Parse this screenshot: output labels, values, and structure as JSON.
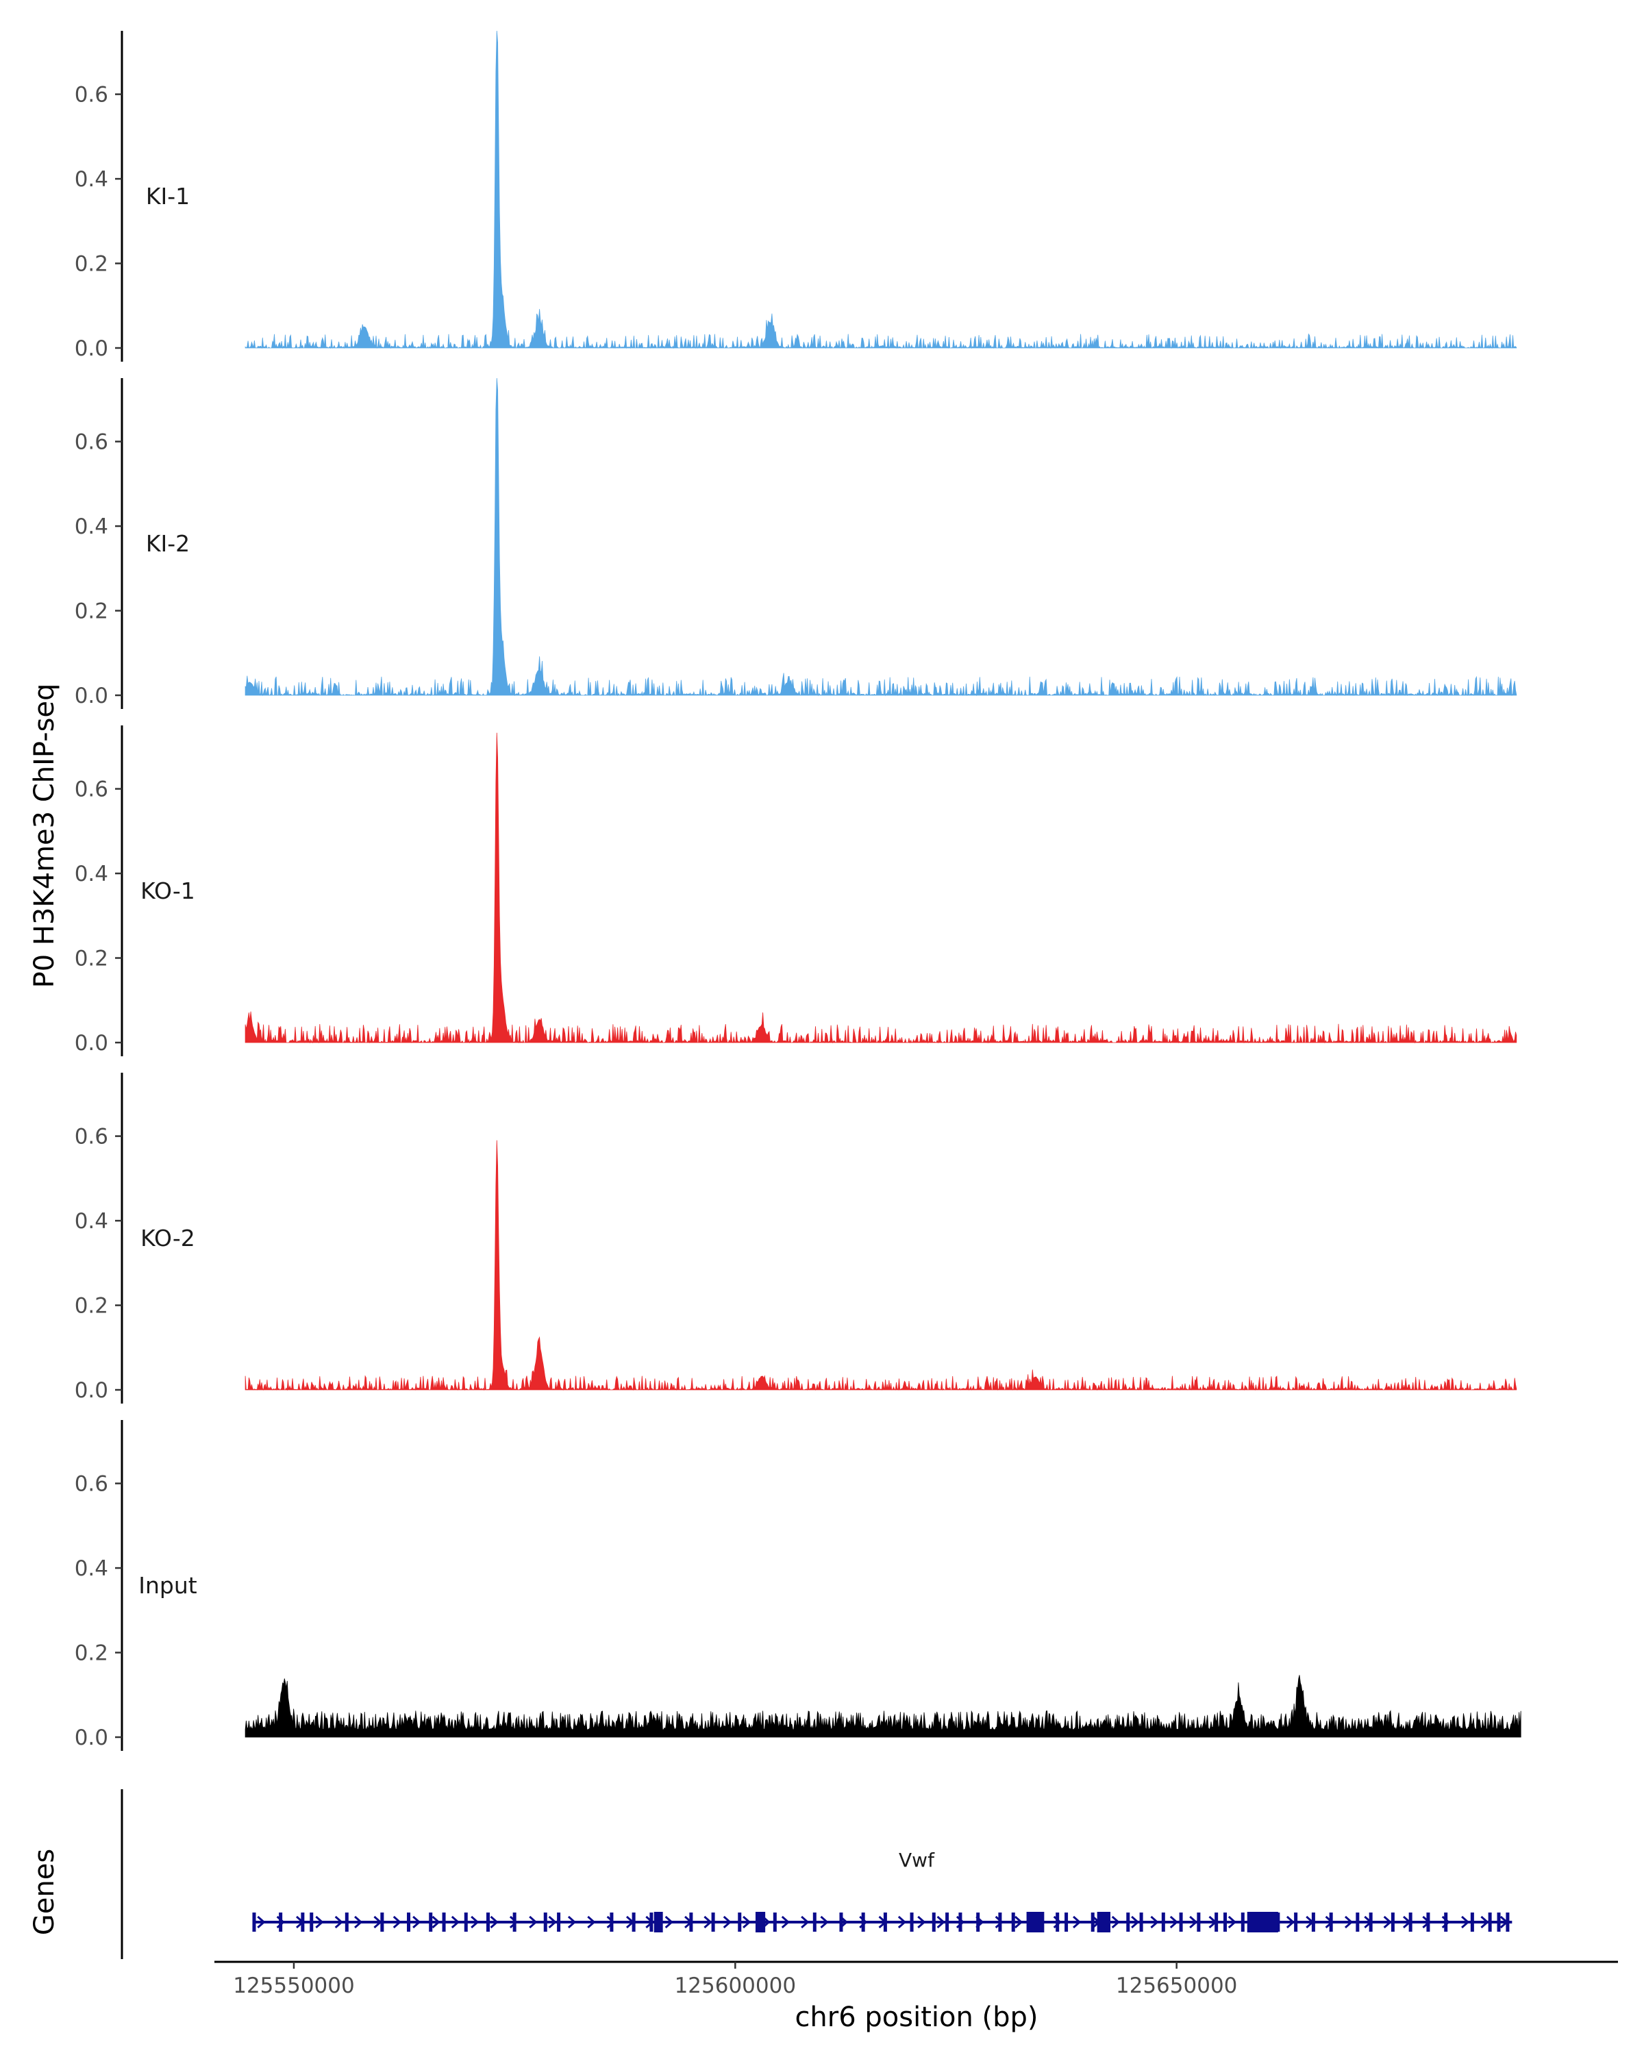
{
  "chart_data": {
    "type": "area",
    "ylabel": "P0 H3K4me3 ChIP-seq",
    "xlabel": "chr6 position (bp)",
    "xlim": [
      125541000,
      125700000
    ],
    "x_ticks": [
      {
        "value": 125550000,
        "label": "125550000"
      },
      {
        "value": 125600000,
        "label": "125600000"
      },
      {
        "value": 125650000,
        "label": "125650000"
      }
    ],
    "ylim": [
      0,
      0.75
    ],
    "y_ticks": [
      {
        "value": 0.0,
        "label": "0.0"
      },
      {
        "value": 0.2,
        "label": "0.2"
      },
      {
        "value": 0.4,
        "label": "0.4"
      },
      {
        "value": 0.6,
        "label": "0.6"
      }
    ],
    "tracks": [
      {
        "name": "KI-1",
        "color": "#56a6e4",
        "peaks": [
          [
            125573000,
            0.7
          ],
          [
            125573400,
            0.14
          ],
          [
            125577800,
            0.06
          ],
          [
            125558000,
            0.05
          ],
          [
            125604000,
            0.06
          ]
        ],
        "background": 0.015,
        "range": [
          125544500,
          125688500
        ],
        "seed": 11
      },
      {
        "name": "KI-2",
        "color": "#56a6e4",
        "peaks": [
          [
            125573000,
            0.7
          ],
          [
            125573400,
            0.14
          ],
          [
            125577800,
            0.06
          ],
          [
            125545000,
            0.03
          ],
          [
            125606000,
            0.03
          ]
        ],
        "background": 0.02,
        "range": [
          125544500,
          125688500
        ],
        "seed": 23
      },
      {
        "name": "KO-1",
        "color": "#e8282a",
        "peaks": [
          [
            125573000,
            0.65
          ],
          [
            125573400,
            0.13
          ],
          [
            125577800,
            0.05
          ],
          [
            125545000,
            0.05
          ],
          [
            125603000,
            0.04
          ]
        ],
        "background": 0.02,
        "range": [
          125544500,
          125688500
        ],
        "seed": 37
      },
      {
        "name": "KO-2",
        "color": "#e8282a",
        "peaks": [
          [
            125573000,
            0.54
          ],
          [
            125573400,
            0.07
          ],
          [
            125577800,
            0.1
          ],
          [
            125603000,
            0.03
          ],
          [
            125634000,
            0.03
          ]
        ],
        "background": 0.015,
        "range": [
          125544500,
          125688500
        ],
        "seed": 41
      },
      {
        "name": "Input",
        "color": "#000000",
        "peaks": [
          [
            125549000,
            0.1
          ],
          [
            125664000,
            0.1
          ],
          [
            125657000,
            0.07
          ]
        ],
        "background": 0.05,
        "range": [
          125544500,
          125689000
        ],
        "seed": 53
      }
    ],
    "genes_label": "Genes",
    "gene": {
      "name": "Vwf",
      "strand": "+",
      "color": "#0b0b8c",
      "range": [
        125545500,
        125688000
      ],
      "exons": [
        125545500,
        125548500,
        125551000,
        125552000,
        125556000,
        125560000,
        125563000,
        125565500,
        125567000,
        125569500,
        125572000,
        125575000,
        125578500,
        125580000,
        125586000,
        125588500,
        125590500,
        125591200,
        125595000,
        125597500,
        125600500,
        125602500,
        125602800,
        125604500,
        125609000,
        125612000,
        125614500,
        125617000,
        125620000,
        125622500,
        125624000,
        125625500,
        125627500,
        125630000,
        125631500,
        125633500,
        125634200,
        125636500,
        125637500,
        125640500,
        125641500,
        125644500,
        125646000,
        125648500,
        125650500,
        125652500,
        125654500,
        125655500,
        125657500,
        125658500,
        125659500,
        125661500,
        125663500,
        125665500,
        125667500,
        125670500,
        125672000,
        125674500,
        125676500,
        125678500,
        125680500,
        125683500,
        125685500,
        125686500,
        125687500
      ],
      "big_exons": [
        [
          125590800,
          125591800
        ],
        [
          125602300,
          125603400
        ],
        [
          125633000,
          125635000
        ],
        [
          125641000,
          125642500
        ],
        [
          125658000,
          125661500
        ]
      ]
    }
  }
}
